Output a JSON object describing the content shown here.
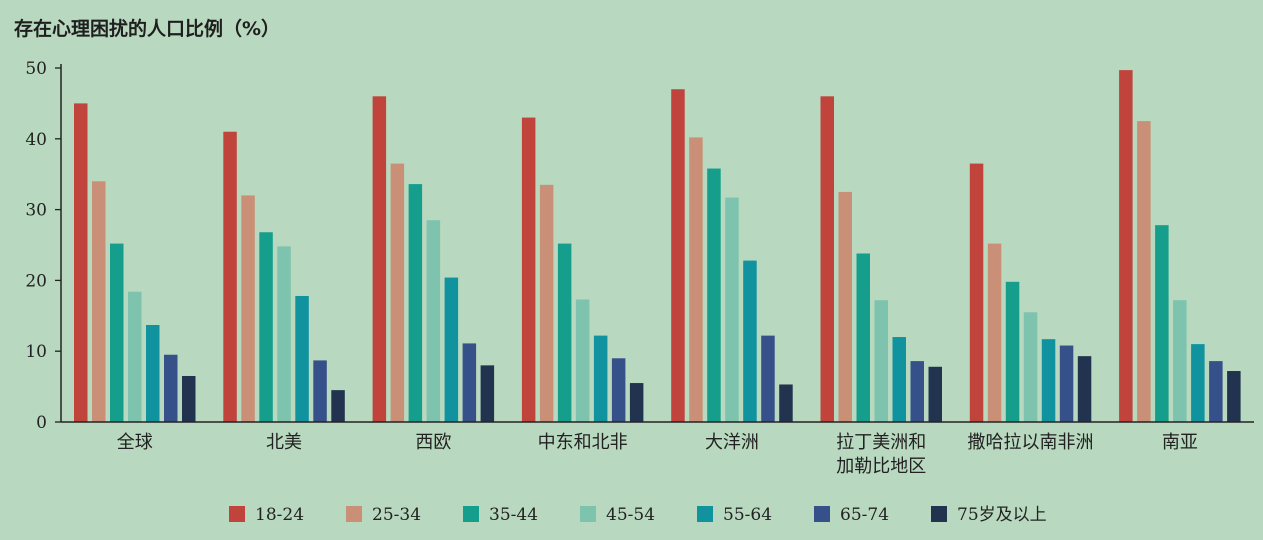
{
  "chart_data": {
    "type": "bar",
    "title": "存在心理困扰的人口比例（%）",
    "xlabel": "",
    "ylabel": "",
    "ylim": [
      0,
      50
    ],
    "yticks": [
      0,
      10,
      20,
      30,
      40,
      50
    ],
    "grid": false,
    "legend_position": "bottom",
    "categories": [
      [
        "全球"
      ],
      [
        "北美"
      ],
      [
        "西欧"
      ],
      [
        "中东和北非"
      ],
      [
        "大洋洲"
      ],
      [
        "拉丁美洲和",
        "加勒比地区"
      ],
      [
        "撒哈拉以南非洲"
      ],
      [
        "南亚"
      ]
    ],
    "series": [
      {
        "name": "18-24",
        "color": "#c0443b",
        "values": [
          45,
          41,
          46,
          43,
          47,
          46,
          36.5,
          49.7
        ]
      },
      {
        "name": "25-34",
        "color": "#c99077",
        "values": [
          34,
          32,
          36.5,
          33.5,
          40.2,
          32.5,
          25.2,
          42.5
        ]
      },
      {
        "name": "35-44",
        "color": "#159e8c",
        "values": [
          25.2,
          26.8,
          33.6,
          25.2,
          35.8,
          23.8,
          19.8,
          27.8
        ]
      },
      {
        "name": "45-54",
        "color": "#7ec3ad",
        "values": [
          18.4,
          24.8,
          28.5,
          17.3,
          31.7,
          17.2,
          15.5,
          17.2
        ]
      },
      {
        "name": "55-64",
        "color": "#11929f",
        "values": [
          13.7,
          17.8,
          20.4,
          12.2,
          22.8,
          12,
          11.7,
          11
        ]
      },
      {
        "name": "65-74",
        "color": "#36508a",
        "values": [
          9.5,
          8.7,
          11.1,
          9,
          12.2,
          8.6,
          10.8,
          8.6
        ]
      },
      {
        "name": "75岁及以上",
        "color": "#223350",
        "values": [
          6.5,
          4.5,
          8,
          5.5,
          5.3,
          7.8,
          9.3,
          7.2
        ]
      }
    ]
  }
}
